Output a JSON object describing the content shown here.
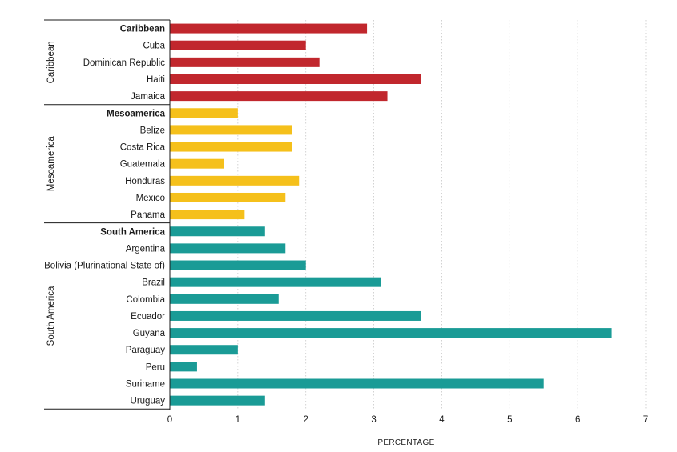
{
  "chart_data": {
    "type": "bar",
    "orientation": "horizontal",
    "xlabel": "PERCENTAGE",
    "xlim": [
      0,
      7
    ],
    "xticks": [
      0,
      1,
      2,
      3,
      4,
      5,
      6,
      7
    ],
    "grid": "vertical dotted",
    "groups": [
      {
        "name": "Caribbean",
        "color": "#c1272d",
        "items": [
          {
            "label": "Caribbean",
            "value": 2.9,
            "bold": true
          },
          {
            "label": "Cuba",
            "value": 2.0
          },
          {
            "label": "Dominican Republic",
            "value": 2.2
          },
          {
            "label": "Haiti",
            "value": 3.7
          },
          {
            "label": "Jamaica",
            "value": 3.2
          }
        ]
      },
      {
        "name": "Mesoamerica",
        "color": "#f5c01b",
        "items": [
          {
            "label": "Mesoamerica",
            "value": 1.0,
            "bold": true
          },
          {
            "label": "Belize",
            "value": 1.8
          },
          {
            "label": "Costa Rica",
            "value": 1.8
          },
          {
            "label": "Guatemala",
            "value": 0.8
          },
          {
            "label": "Honduras",
            "value": 1.9
          },
          {
            "label": "Mexico",
            "value": 1.7
          },
          {
            "label": "Panama",
            "value": 1.1
          }
        ]
      },
      {
        "name": "South America",
        "color": "#1a9b96",
        "items": [
          {
            "label": "South America",
            "value": 1.4,
            "bold": true
          },
          {
            "label": "Argentina",
            "value": 1.7
          },
          {
            "label": "Bolivia (Plurinational State of)",
            "value": 2.0
          },
          {
            "label": "Brazil",
            "value": 3.1
          },
          {
            "label": "Colombia",
            "value": 1.6
          },
          {
            "label": "Ecuador",
            "value": 3.7
          },
          {
            "label": "Guyana",
            "value": 6.5
          },
          {
            "label": "Paraguay",
            "value": 1.0
          },
          {
            "label": "Peru",
            "value": 0.4
          },
          {
            "label": "Suriname",
            "value": 5.5
          },
          {
            "label": "Uruguay",
            "value": 1.4
          }
        ]
      }
    ]
  }
}
